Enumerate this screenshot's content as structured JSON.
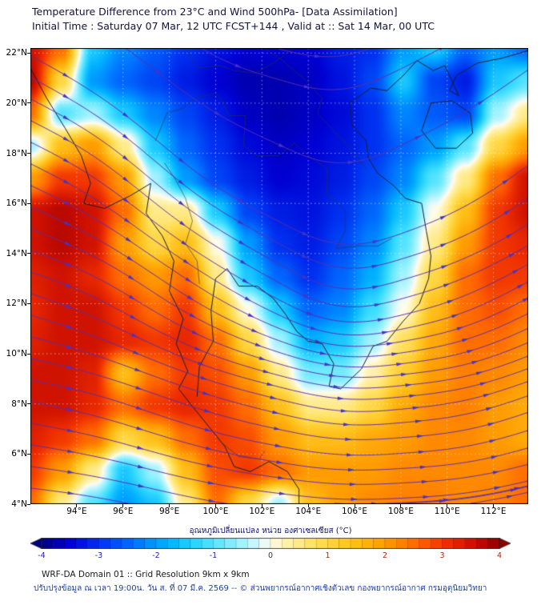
{
  "header": {
    "title": "Temperature Difference from 23°C and Wind 500hPa- [Data Assimilation]",
    "subtitle": "Initial Time : Saturday 07 Mar, 12 UTC FCST+144 , Valid at ::  Sat 14 Mar, 00 UTC"
  },
  "axes": {
    "extent": {
      "lon_min": 92.0,
      "lon_max": 113.5,
      "lat_min": 4.0,
      "lat_max": 22.2
    },
    "x_ticks": [
      {
        "label": "94°E",
        "lon": 94
      },
      {
        "label": "96°E",
        "lon": 96
      },
      {
        "label": "98°E",
        "lon": 98
      },
      {
        "label": "100°E",
        "lon": 100
      },
      {
        "label": "102°E",
        "lon": 102
      },
      {
        "label": "104°E",
        "lon": 104
      },
      {
        "label": "106°E",
        "lon": 106
      },
      {
        "label": "108°E",
        "lon": 108
      },
      {
        "label": "110°E",
        "lon": 110
      },
      {
        "label": "112°E",
        "lon": 112
      }
    ],
    "y_ticks": [
      {
        "label": "4°N",
        "lat": 4
      },
      {
        "label": "6°N",
        "lat": 6
      },
      {
        "label": "8°N",
        "lat": 8
      },
      {
        "label": "10°N",
        "lat": 10
      },
      {
        "label": "12°N",
        "lat": 12
      },
      {
        "label": "14°N",
        "lat": 14
      },
      {
        "label": "16°N",
        "lat": 16
      },
      {
        "label": "18°N",
        "lat": 18
      },
      {
        "label": "20°N",
        "lat": 20
      },
      {
        "label": "22°N",
        "lat": 22
      }
    ]
  },
  "chart_data": {
    "type": "heatmap",
    "title": "Temperature Difference from 23°C and Wind 500hPa- [Data Assimilation]",
    "units": "°C",
    "value_range": [
      -4,
      4
    ],
    "grid_layout": "rows top-to-bottom lat 22.2 to 4.0, cols left-to-right lon 92 to 113.5",
    "temp_diff_grid_c": [
      [
        3.5,
        2.5,
        -1.5,
        -2.2,
        -2.6,
        -3.0,
        -3.3,
        -3.5,
        -3.5,
        -3.5,
        -3.2,
        -3.0,
        -2.0,
        -1.5,
        -2.5,
        -2.0,
        -2.5
      ],
      [
        3.7,
        1.0,
        -2.0,
        -2.5,
        -2.8,
        -3.2,
        -3.5,
        -3.7,
        -3.7,
        -3.6,
        -3.3,
        -2.8,
        -1.5,
        -2.8,
        -3.2,
        -1.5,
        -1.0
      ],
      [
        2.5,
        -1.0,
        -0.5,
        -1.5,
        -2.2,
        -2.8,
        -3.2,
        -3.6,
        -3.7,
        -3.6,
        -3.4,
        -3.0,
        -2.2,
        -2.6,
        -2.8,
        -0.5,
        0.5
      ],
      [
        -0.5,
        1.5,
        2.0,
        0.5,
        -1.5,
        -2.5,
        -3.0,
        -3.4,
        -3.6,
        -3.5,
        -3.3,
        -3.0,
        -2.5,
        -2.0,
        -1.0,
        1.0,
        2.0
      ],
      [
        2.0,
        3.0,
        3.0,
        2.0,
        -0.5,
        -2.0,
        -2.8,
        -3.2,
        -3.5,
        -3.4,
        -3.2,
        -2.8,
        -2.2,
        -1.0,
        0.5,
        2.5,
        3.5
      ],
      [
        3.5,
        3.7,
        3.5,
        2.5,
        0.5,
        0.5,
        -1.5,
        -2.8,
        -3.2,
        -3.3,
        -3.0,
        -2.5,
        -1.5,
        0.0,
        1.5,
        3.0,
        3.5
      ],
      [
        3.5,
        3.7,
        3.5,
        2.0,
        1.0,
        1.5,
        0.0,
        -2.0,
        -3.0,
        -3.2,
        -2.8,
        -2.2,
        -1.0,
        0.5,
        2.0,
        3.0,
        3.2
      ],
      [
        3.3,
        3.5,
        3.2,
        2.5,
        2.0,
        2.5,
        0.5,
        -1.5,
        -2.5,
        -3.0,
        -2.5,
        -1.8,
        -0.5,
        1.0,
        2.5,
        3.0,
        3.0
      ],
      [
        3.2,
        3.5,
        3.5,
        3.0,
        2.5,
        3.0,
        1.5,
        0.0,
        -1.5,
        -2.5,
        -2.2,
        -1.2,
        0.0,
        1.5,
        2.5,
        2.8,
        2.5
      ],
      [
        3.3,
        3.5,
        3.5,
        3.2,
        3.0,
        3.2,
        2.5,
        1.0,
        -0.5,
        -1.8,
        -1.5,
        -0.5,
        0.8,
        1.8,
        2.5,
        2.5,
        2.2
      ],
      [
        3.5,
        3.5,
        3.3,
        1.5,
        2.5,
        3.0,
        2.8,
        2.0,
        0.5,
        -0.8,
        -0.8,
        0.3,
        1.2,
        2.0,
        2.3,
        2.2,
        2.0
      ],
      [
        3.5,
        3.5,
        3.2,
        2.5,
        3.0,
        3.2,
        3.0,
        2.5,
        1.5,
        0.5,
        0.5,
        1.0,
        1.8,
        2.2,
        2.3,
        2.0,
        1.8
      ],
      [
        3.3,
        3.0,
        2.5,
        1.0,
        1.5,
        2.5,
        3.0,
        2.8,
        2.0,
        1.5,
        1.5,
        1.8,
        2.0,
        2.2,
        2.2,
        2.0,
        1.8
      ],
      [
        3.0,
        2.0,
        0.5,
        -1.5,
        -0.5,
        1.5,
        2.8,
        3.0,
        2.5,
        2.0,
        2.0,
        2.0,
        2.2,
        2.2,
        2.2,
        2.2,
        2.5
      ],
      [
        2.5,
        0.5,
        -1.0,
        -2.0,
        -1.5,
        0.5,
        2.5,
        1.0,
        -0.5,
        1.5,
        2.0,
        2.2,
        2.3,
        2.3,
        2.2,
        2.3,
        2.5
      ]
    ],
    "wind_u": [
      [
        1.0,
        1.0,
        1.0,
        1.1,
        1.2
      ],
      [
        1.0,
        0.95,
        0.95,
        1.05,
        1.2
      ],
      [
        1.0,
        0.9,
        0.9,
        1.0,
        1.1
      ],
      [
        1.0,
        1.0,
        1.0,
        1.0,
        1.0
      ],
      [
        1.0,
        1.0,
        1.0,
        1.0,
        1.0
      ]
    ],
    "wind_v": [
      [
        -0.55,
        -0.75,
        -0.25,
        0.55,
        0.85
      ],
      [
        -0.5,
        -0.8,
        -0.45,
        0.5,
        0.85
      ],
      [
        -0.35,
        -0.6,
        -0.5,
        0.3,
        0.6
      ],
      [
        -0.2,
        -0.35,
        -0.25,
        0.1,
        0.35
      ],
      [
        -0.12,
        -0.22,
        -0.12,
        0.05,
        0.22
      ]
    ],
    "colormap_stops": [
      [
        -4.0,
        "#000080"
      ],
      [
        -3.5,
        "#0000d2"
      ],
      [
        -3.0,
        "#0030f0"
      ],
      [
        -2.4,
        "#0070ff"
      ],
      [
        -1.8,
        "#00b0ff"
      ],
      [
        -1.2,
        "#38dcff"
      ],
      [
        -0.6,
        "#90f0ff"
      ],
      [
        -0.2,
        "#d8f8ff"
      ],
      [
        0.0,
        "#fffce8"
      ],
      [
        0.3,
        "#fff0a8"
      ],
      [
        0.8,
        "#ffe05a"
      ],
      [
        1.4,
        "#ffc41e"
      ],
      [
        2.0,
        "#ff9c00"
      ],
      [
        2.6,
        "#ff6400"
      ],
      [
        3.1,
        "#ee2e00"
      ],
      [
        3.6,
        "#c80c00"
      ],
      [
        4.0,
        "#8c0000"
      ]
    ]
  },
  "map_overlay": {
    "coast_color": "#16202c",
    "border_color": "#2a3440",
    "streamline_color": "#5a2fae",
    "arrow_color": "#4433cc",
    "gridline_color": "rgba(255,255,255,0.55)",
    "coastlines": [
      [
        [
          92.0,
          21.4
        ],
        [
          92.7,
          20.2
        ],
        [
          93.5,
          19.0
        ],
        [
          94.2,
          17.9
        ],
        [
          94.6,
          16.8
        ],
        [
          94.3,
          16.0
        ],
        [
          95.2,
          15.8
        ],
        [
          96.3,
          16.3
        ],
        [
          97.2,
          16.8
        ],
        [
          97.0,
          15.6
        ],
        [
          97.7,
          14.7
        ],
        [
          98.2,
          13.7
        ],
        [
          98.0,
          12.5
        ],
        [
          98.6,
          11.4
        ],
        [
          98.3,
          10.4
        ],
        [
          98.8,
          9.3
        ],
        [
          98.4,
          8.6
        ],
        [
          99.0,
          7.9
        ],
        [
          99.7,
          7.1
        ],
        [
          100.4,
          6.3
        ],
        [
          100.8,
          5.5
        ],
        [
          101.5,
          5.3
        ],
        [
          102.3,
          5.7
        ],
        [
          103.1,
          5.3
        ],
        [
          103.6,
          4.6
        ],
        [
          103.6,
          4.0
        ]
      ],
      [
        [
          99.2,
          8.3
        ],
        [
          99.3,
          9.5
        ],
        [
          99.9,
          10.5
        ],
        [
          99.8,
          11.7
        ],
        [
          100.0,
          13.0
        ],
        [
          100.5,
          13.4
        ],
        [
          101.0,
          12.7
        ],
        [
          101.8,
          12.7
        ],
        [
          102.5,
          12.2
        ],
        [
          103.0,
          11.6
        ],
        [
          103.5,
          10.9
        ],
        [
          104.0,
          10.5
        ],
        [
          104.6,
          10.4
        ],
        [
          105.1,
          9.6
        ],
        [
          104.9,
          8.7
        ],
        [
          105.4,
          8.6
        ],
        [
          106.3,
          9.4
        ],
        [
          106.8,
          10.3
        ],
        [
          107.4,
          10.5
        ],
        [
          108.1,
          11.3
        ],
        [
          108.8,
          12.0
        ],
        [
          109.2,
          13.0
        ],
        [
          109.3,
          13.9
        ],
        [
          109.1,
          14.9
        ],
        [
          108.9,
          16.0
        ],
        [
          108.2,
          16.2
        ],
        [
          107.7,
          16.7
        ],
        [
          107.0,
          17.2
        ],
        [
          106.6,
          17.8
        ],
        [
          106.5,
          18.5
        ],
        [
          105.9,
          19.1
        ],
        [
          105.8,
          20.0
        ],
        [
          106.7,
          20.6
        ],
        [
          107.4,
          20.5
        ],
        [
          108.1,
          21.1
        ],
        [
          108.7,
          21.7
        ]
      ],
      [
        [
          109.3,
          20.0
        ],
        [
          110.2,
          20.1
        ],
        [
          111.0,
          19.6
        ],
        [
          111.1,
          18.8
        ],
        [
          110.4,
          18.2
        ],
        [
          109.5,
          18.2
        ],
        [
          108.9,
          18.9
        ],
        [
          109.3,
          20.0
        ]
      ],
      [
        [
          108.7,
          21.7
        ],
        [
          109.4,
          21.3
        ],
        [
          109.9,
          21.5
        ],
        [
          110.2,
          20.9
        ],
        [
          110.5,
          20.3
        ],
        [
          110.1,
          20.5
        ],
        [
          110.4,
          21.1
        ],
        [
          111.3,
          21.6
        ],
        [
          112.4,
          21.8
        ],
        [
          113.5,
          22.1
        ]
      ]
    ],
    "borders": [
      [
        [
          97.4,
          18.5
        ],
        [
          97.9,
          19.6
        ],
        [
          98.6,
          19.8
        ],
        [
          99.1,
          20.2
        ],
        [
          100.0,
          20.4
        ],
        [
          100.2,
          20.2
        ],
        [
          100.6,
          19.5
        ],
        [
          101.3,
          19.5
        ],
        [
          101.2,
          18.3
        ],
        [
          101.8,
          17.9
        ],
        [
          102.7,
          17.9
        ],
        [
          103.4,
          18.4
        ],
        [
          104.0,
          17.9
        ],
        [
          104.8,
          17.4
        ],
        [
          104.8,
          16.4
        ],
        [
          105.6,
          15.7
        ],
        [
          105.6,
          14.9
        ],
        [
          105.2,
          14.2
        ],
        [
          106.1,
          14.3
        ],
        [
          107.0,
          14.3
        ],
        [
          107.6,
          14.6
        ]
      ],
      [
        [
          97.8,
          17.6
        ],
        [
          98.3,
          16.9
        ],
        [
          98.7,
          16.2
        ],
        [
          99.0,
          15.3
        ],
        [
          98.7,
          14.4
        ],
        [
          99.2,
          13.7
        ],
        [
          99.3,
          12.8
        ]
      ],
      [
        [
          100.2,
          6.5
        ],
        [
          101.0,
          5.9
        ],
        [
          101.9,
          5.8
        ],
        [
          102.1,
          6.1
        ]
      ],
      [
        [
          98.7,
          22.2
        ],
        [
          99.2,
          21.4
        ],
        [
          100.2,
          21.5
        ],
        [
          100.8,
          21.3
        ],
        [
          101.7,
          21.2
        ],
        [
          102.5,
          21.6
        ],
        [
          103.4,
          22.2
        ]
      ],
      [
        [
          102.1,
          22.2
        ],
        [
          102.9,
          21.7
        ],
        [
          103.9,
          20.9
        ],
        [
          104.6,
          20.2
        ],
        [
          104.4,
          19.6
        ],
        [
          105.1,
          18.9
        ],
        [
          105.6,
          18.4
        ],
        [
          106.5,
          17.4
        ]
      ]
    ]
  },
  "colorbar": {
    "label": "อุณหภูมิเปลี่ยนแปลง หน่วย องศาเซลเซียส (°C)",
    "min": -4,
    "max": 4,
    "segment_step": 0.2,
    "tick_values": [
      -4,
      -3,
      -2,
      -1,
      0,
      1,
      2,
      3,
      4
    ],
    "negative_label_color": "#2222bb",
    "zero_label_color": "#333333",
    "positive_label_color": "#bb2200"
  },
  "footer": {
    "line1": "WRF-DA Domain 01 :: Grid Resolution 9km x 9km",
    "line2": "ปรับปรุงข้อมูล ณ เวลา 19:00น. วัน ส. ที่ 07 มี.ค. 2569 -- © ส่วนพยากรณ์อากาศเชิงตัวเลข กองพยากรณ์อากาศ กรมอุตุนิยมวิทยา"
  }
}
